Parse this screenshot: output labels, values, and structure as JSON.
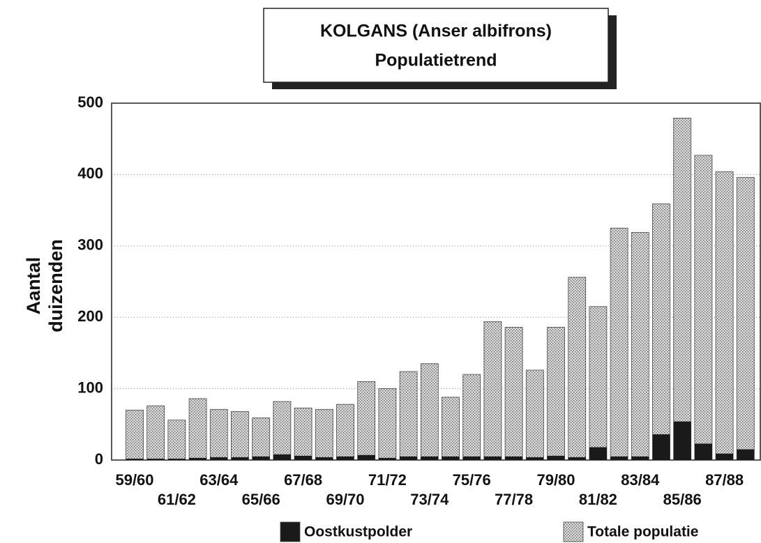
{
  "chart_data": {
    "type": "bar",
    "title": [
      "KOLGANS (Anser albifrons)",
      "Populatietrend"
    ],
    "y_label": [
      "Aantal",
      "duizenden"
    ],
    "categories": [
      "59/60",
      null,
      "61/62",
      null,
      "63/64",
      null,
      "65/66",
      null,
      "67/68",
      null,
      "69/70",
      null,
      "71/72",
      null,
      "73/74",
      null,
      "75/76",
      null,
      "77/78",
      null,
      "79/80",
      null,
      "81/82",
      null,
      "83/84",
      null,
      "85/86",
      null,
      "87/88",
      null
    ],
    "series": [
      {
        "name": "Totale populatie",
        "color": "#d8d8d8",
        "values": [
          70,
          76,
          56,
          86,
          71,
          68,
          59,
          82,
          73,
          71,
          78,
          110,
          100,
          124,
          135,
          88,
          120,
          194,
          186,
          126,
          186,
          256,
          215,
          325,
          319,
          359,
          479,
          427,
          404,
          396
        ]
      },
      {
        "name": "Oostkustpolder",
        "color": "#1a1a1a",
        "values": [
          2,
          2,
          2,
          3,
          4,
          4,
          5,
          8,
          6,
          4,
          5,
          7,
          3,
          5,
          5,
          5,
          5,
          5,
          5,
          4,
          6,
          4,
          18,
          5,
          5,
          36,
          54,
          23,
          9,
          15
        ]
      }
    ],
    "legend_order": [
      1,
      0
    ],
    "legend": "bottom",
    "overlap": true,
    "ylim": [
      0,
      500
    ],
    "yticks": [
      0,
      100,
      200,
      300,
      400,
      500
    ],
    "grid": true
  }
}
